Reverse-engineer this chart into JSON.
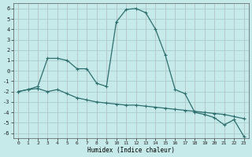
{
  "xlabel": "Humidex (Indice chaleur)",
  "background_color": "#c6eaea",
  "grid_color": "#a8cccc",
  "line_color": "#2d6e6e",
  "xlim": [
    -0.5,
    23.5
  ],
  "ylim": [
    -6.5,
    6.5
  ],
  "xticks": [
    0,
    1,
    2,
    3,
    4,
    5,
    6,
    7,
    8,
    9,
    10,
    11,
    12,
    13,
    14,
    15,
    16,
    17,
    18,
    19,
    20,
    21,
    22,
    23
  ],
  "yticks": [
    -6,
    -5,
    -4,
    -3,
    -2,
    -1,
    0,
    1,
    2,
    3,
    4,
    5,
    6
  ],
  "series1_x": [
    0,
    1,
    2,
    3,
    4,
    5,
    6,
    7,
    8,
    9,
    10,
    11,
    12,
    13,
    14,
    15,
    16,
    17,
    18,
    19,
    20,
    21,
    22,
    23
  ],
  "series1_y": [
    -2,
    -1.8,
    -1.5,
    1.2,
    1.2,
    1.0,
    0.2,
    0.2,
    -1.2,
    -1.5,
    4.7,
    5.9,
    6.0,
    5.6,
    4.0,
    1.5,
    -1.8,
    -2.2,
    -4.0,
    -4.2,
    -4.5,
    -5.2,
    -4.7,
    -6.3
  ],
  "series2_x": [
    0,
    1,
    2,
    3,
    4,
    5,
    6,
    7,
    8,
    9,
    10,
    11,
    12,
    13,
    14,
    15,
    16,
    17,
    18,
    19,
    20,
    21,
    22,
    23
  ],
  "series2_y": [
    -2,
    -1.8,
    -1.7,
    -2.0,
    -1.8,
    -2.2,
    -2.6,
    -2.8,
    -3.0,
    -3.1,
    -3.2,
    -3.3,
    -3.3,
    -3.4,
    -3.5,
    -3.6,
    -3.7,
    -3.8,
    -3.9,
    -4.0,
    -4.1,
    -4.2,
    -4.4,
    -4.6
  ]
}
